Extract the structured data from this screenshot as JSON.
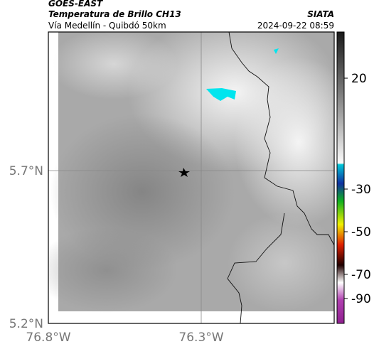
{
  "header": {
    "satellite": "GOES-EAST",
    "product": "Temperatura de Brillo CH13",
    "region": "Vía Medellín - Quibdó 50km",
    "agency": "SIATA",
    "timestamp": "2024-09-22 08:59"
  },
  "axes": {
    "lat_ticks": [
      "5.7°N",
      "5.2°N"
    ],
    "lon_ticks": [
      "76.8°W",
      "76.3°W"
    ]
  },
  "colorbar": {
    "ticks": [
      20,
      -30,
      -50,
      -70,
      -90
    ]
  }
}
